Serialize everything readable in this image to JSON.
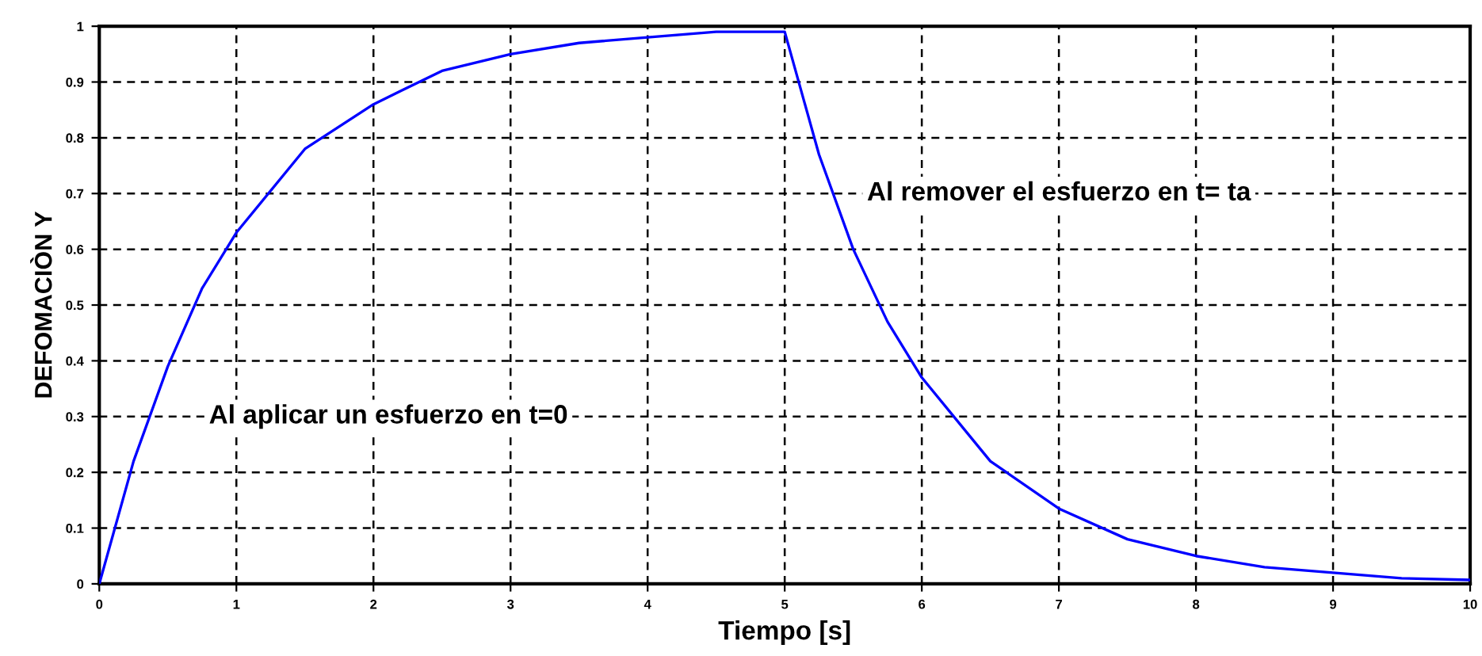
{
  "chart_data": {
    "type": "line",
    "xlabel": "Tiempo [s]",
    "ylabel": "DEFOMACIÒN Y",
    "series": [
      {
        "color": "#0000ff",
        "x": [
          0,
          0.25,
          0.5,
          0.75,
          1,
          1.5,
          2,
          2.5,
          3,
          3.5,
          4,
          4.5,
          5,
          5.25,
          5.5,
          5.75,
          6,
          6.5,
          7,
          7.5,
          8,
          8.5,
          9,
          9.5,
          10
        ],
        "values": [
          0,
          0.22,
          0.39,
          0.53,
          0.63,
          0.78,
          0.86,
          0.92,
          0.95,
          0.97,
          0.98,
          0.99,
          0.99,
          0.77,
          0.6,
          0.47,
          0.37,
          0.22,
          0.135,
          0.08,
          0.05,
          0.03,
          0.02,
          0.01,
          0.007
        ]
      }
    ],
    "xlim": [
      0,
      10
    ],
    "ylim": [
      0,
      1
    ],
    "xticks": [
      0,
      1,
      2,
      3,
      4,
      5,
      6,
      7,
      8,
      9,
      10
    ],
    "yticks": [
      0,
      0.1,
      0.2,
      0.3,
      0.4,
      0.5,
      0.6,
      0.7,
      0.8,
      0.9,
      1
    ],
    "grid": true,
    "line_style": "solid",
    "marker": "none",
    "annotations": [
      "Al aplicar un esfuerzo en t=0",
      "Al remover el esfuerzo en t= ta"
    ]
  }
}
